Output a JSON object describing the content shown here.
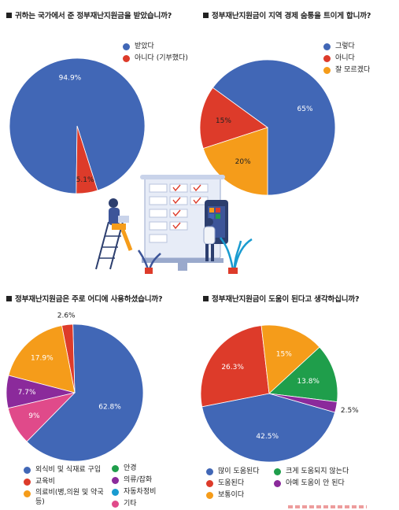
{
  "colors": {
    "blue": "#4167b6",
    "red": "#dd3b2a",
    "orange": "#f59c1a",
    "green": "#1f9e4b",
    "purple": "#8b2a9b",
    "pink": "#e04a8a",
    "teal": "#1a9bd0"
  },
  "questions": {
    "q1": "귀하는 국가에서 준 정부재난지원금을 받았습니까?",
    "q2": "정부재난지원금이 지역 경제 숨통을 트이게 합니까?",
    "q3": "정부재난지원금은 주로 어디에 사용하셨습니까?",
    "q4": "정부재난지원금이 도움이 된다고 생각하십니까?"
  },
  "chart_data": [
    {
      "type": "pie",
      "title": "귀하는 국가에서 준 정부재난지원금을 받았습니까?",
      "slices": [
        {
          "label": "받았다",
          "value": 94.9,
          "text": "94.9%",
          "color": "#4167b6"
        },
        {
          "label": "아니다 (기부했다)",
          "value": 5.1,
          "text": "5.1%",
          "color": "#dd3b2a"
        }
      ],
      "legend_position": "top-right"
    },
    {
      "type": "pie",
      "title": "정부재난지원금이 지역 경제 숨통을 트이게 합니까?",
      "slices": [
        {
          "label": "그렇다",
          "value": 65,
          "text": "65%",
          "color": "#4167b6"
        },
        {
          "label": "아니다",
          "value": 15,
          "text": "15%",
          "color": "#dd3b2a"
        },
        {
          "label": "잘 모르겠다",
          "value": 20,
          "text": "20%",
          "color": "#f59c1a"
        }
      ],
      "legend_position": "top-right"
    },
    {
      "type": "pie",
      "title": "정부재난지원금은 주로 어디에 사용하셨습니까?",
      "slices": [
        {
          "label": "외식비 및 식재료 구입",
          "value": 62.8,
          "text": "62.8%",
          "color": "#4167b6"
        },
        {
          "label": "교육비",
          "value": 2.6,
          "text": "2.6%",
          "color": "#dd3b2a"
        },
        {
          "label": "의료비(병,의원 및 약국 등)",
          "value": 17.9,
          "text": "17.9%",
          "color": "#f59c1a"
        },
        {
          "label": "의류/잡화",
          "value": 7.7,
          "text": "7.7%",
          "color": "#8b2a9b"
        },
        {
          "label": "기타",
          "value": 9,
          "text": "9%",
          "color": "#e04a8a"
        }
      ],
      "legend": [
        {
          "label": "외식비 및 식재료 구입",
          "color": "#4167b6"
        },
        {
          "label": "교육비",
          "color": "#dd3b2a"
        },
        {
          "label": "의료비(병,의원 및 약국 등)",
          "color": "#f59c1a"
        },
        {
          "label": "안경",
          "color": "#1f9e4b"
        },
        {
          "label": "의류/잡화",
          "color": "#8b2a9b"
        },
        {
          "label": "자동차정비",
          "color": "#1a9bd0"
        },
        {
          "label": "기타",
          "color": "#e04a8a"
        }
      ],
      "legend_position": "bottom"
    },
    {
      "type": "pie",
      "title": "정부재난지원금이 도움이 된다고 생각하십니까?",
      "slices": [
        {
          "label": "많이 도움된다",
          "value": 42.5,
          "text": "42.5%",
          "color": "#4167b6"
        },
        {
          "label": "도움된다",
          "value": 26.3,
          "text": "26.3%",
          "color": "#dd3b2a"
        },
        {
          "label": "보통이다",
          "value": 15,
          "text": "15%",
          "color": "#f59c1a"
        },
        {
          "label": "크게 도움되지 않는다",
          "value": 13.8,
          "text": "13.8%",
          "color": "#1f9e4b"
        },
        {
          "label": "아예 도움이 안 된다",
          "value": 2.5,
          "text": "2.5%",
          "color": "#8b2a9b"
        }
      ],
      "legend": [
        {
          "label": "많이 도움된다",
          "color": "#4167b6"
        },
        {
          "label": "크게 도움되지 않는다",
          "color": "#1f9e4b"
        },
        {
          "label": "도움된다",
          "color": "#dd3b2a"
        },
        {
          "label": "아예 도움이 안 된다",
          "color": "#8b2a9b"
        },
        {
          "label": "보통이다",
          "color": "#f59c1a"
        }
      ],
      "legend_position": "bottom"
    }
  ]
}
